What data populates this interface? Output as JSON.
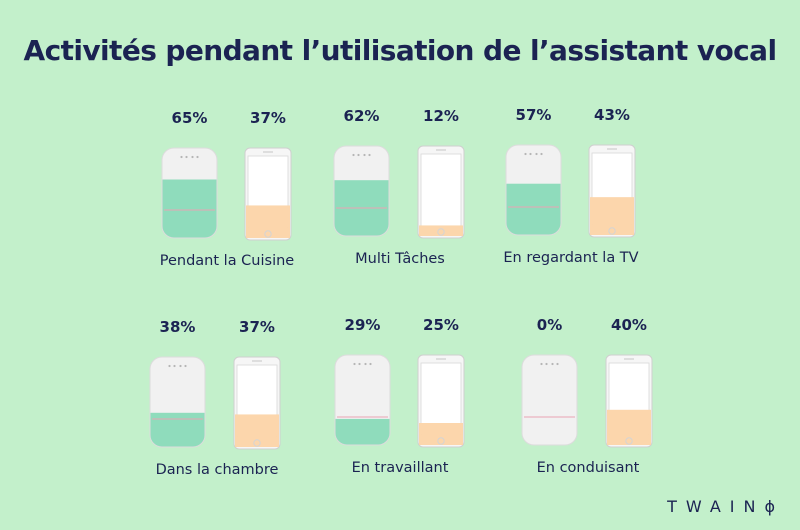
{
  "title": "Activités pendant l’utilisation de l’assistant vocal",
  "brand": "TWAINϕ",
  "colors": {
    "background": "#c3f0cb",
    "text": "#1b2352",
    "speaker_fill": "#8fdcbc",
    "phone_fill": "#fcd4a8"
  },
  "chart_data": {
    "type": "bar",
    "categories": [
      "Pendant la Cuisine",
      "Multi Tâches",
      "En regardant la TV",
      "Dans la chambre",
      "En travaillant",
      "En conduisant"
    ],
    "series": [
      {
        "icon": "smart-speaker-icon",
        "values": [
          65,
          62,
          57,
          38,
          29,
          0
        ]
      },
      {
        "icon": "smartphone-icon",
        "values": [
          37,
          12,
          43,
          37,
          25,
          40
        ]
      }
    ],
    "value_labels": {
      "speaker": [
        "65%",
        "62%",
        "57%",
        "38%",
        "29%",
        "0%"
      ],
      "phone": [
        "37%",
        "12%",
        "43%",
        "37%",
        "25%",
        "40%"
      ]
    },
    "ylim": [
      0,
      100
    ]
  }
}
